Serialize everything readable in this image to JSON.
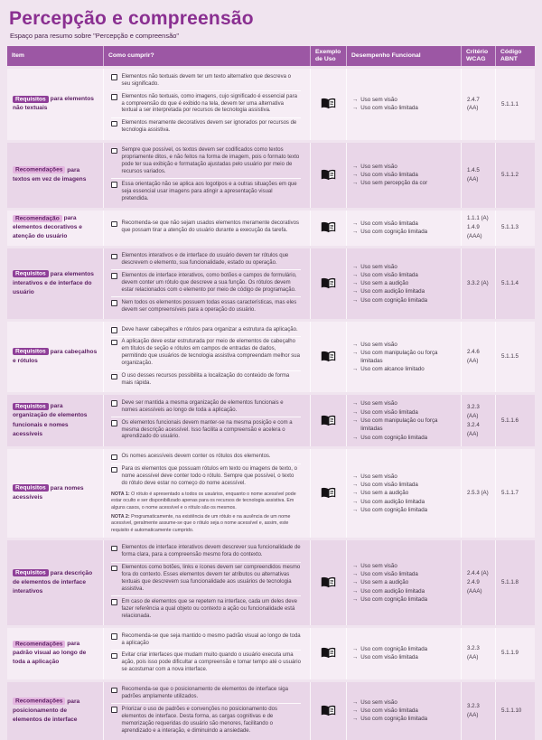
{
  "header": {
    "title": "Percepção e compreensão",
    "subtitle": "Espaço para resumo sobre \"Percepção e compreensão\""
  },
  "icons": {
    "arrow": "→",
    "exemplo": "book-icon",
    "checkbox": "empty-checkbox"
  },
  "colors": {
    "header_bg": "#9c57a4",
    "title_text": "#8a2f91",
    "row_light": "#f6edf5",
    "row_dark": "#e9d6e8",
    "badge_solid": "#8f3f98",
    "badge_light": "#e3b4df",
    "item_text": "#5c1f63"
  },
  "table": {
    "columns": [
      "Item",
      "Como cumprir?",
      "Exemplo de Uso",
      "Desempenho Funcional",
      "Critério WCAG",
      "Código ABNT"
    ],
    "rows": [
      {
        "badge": "Requisitos",
        "badge_style": "solid",
        "item_label": "para elementos não textuais",
        "como_cumprir": [
          "Elementos não textuais devem ter um texto alternativo que descreva o seu significado.",
          "Elementos não textuais, como imagens, cujo significado é essencial para a compreensão do que é exibido na tela, devem ter uma alternativa textual a ser interpretada por recursos de tecnologia assistiva.",
          "Elementos meramente decorativos devem ser ignorados por recursos de tecnologia assistiva."
        ],
        "notas": [],
        "desempenho": [
          "Uso sem visão",
          "Uso com visão limitada"
        ],
        "wcag": [
          "2.4.7 (AA)"
        ],
        "codigo": "5.1.1.1"
      },
      {
        "badge": "Recomendações",
        "badge_style": "light",
        "item_label": "para textos em vez de imagens",
        "como_cumprir": [
          "Sempre que possível, os textos devem ser codificados como textos propriamente ditos, e não feitos na forma de imagem, pois o formato texto pode ter sua exibição e formatação ajustadas pelo usuário por meio de recursos variados.",
          "Essa orientação não se aplica aos logotipos e a outras situações em que seja essencial usar imagens para atingir a apresentação visual pretendida."
        ],
        "notas": [],
        "desempenho": [
          "Uso sem visão",
          "Uso com visão limitada",
          "Uso sem percepção da cor"
        ],
        "wcag": [
          "1.4.5 (AA)"
        ],
        "codigo": "5.1.1.2"
      },
      {
        "badge": "Recomendação",
        "badge_style": "light",
        "item_label": "para elementos decorativos e atenção do usuário",
        "como_cumprir": [
          "Recomenda-se que não sejam usados elementos meramente decorativos que possam tirar a atenção do usuário durante a execução da tarefa."
        ],
        "notas": [],
        "desempenho": [
          "Uso com visão limitada",
          "Uso com cognição limitada"
        ],
        "wcag": [
          "1.1.1 (A)",
          "1.4.9 (AAA)"
        ],
        "codigo": "5.1.1.3"
      },
      {
        "badge": "Requisitos",
        "badge_style": "solid",
        "item_label": "para elementos interativos e de interface do usuário",
        "como_cumprir": [
          "Elementos interativos e de interface do usuário devem ter rótulos que descrevem o elemento, sua funcionalidade, estado ou operação.",
          "Elementos de interface interativos, como botões e campos de formulário, devem conter um rótulo que descreve a sua função. Os rótulos devem estar relacionados com o elemento por meio de código de programação.",
          "Nem todos os elementos possuem todas essas características, mas eles devem ser compreensíveis para a operação do usuário."
        ],
        "notas": [],
        "desempenho": [
          "Uso sem visão",
          "Uso com visão limitada",
          "Uso sem a audição",
          "Uso com audição limitada",
          "Uso com cognição limitada"
        ],
        "wcag": [
          "3.3.2 (A)"
        ],
        "codigo": "5.1.1.4"
      },
      {
        "badge": "Requisitos",
        "badge_style": "solid",
        "item_label": "para cabeçalhos e rótulos",
        "como_cumprir": [
          "Deve haver cabeçalhos e rótulos para organizar a estrutura da aplicação.",
          "A aplicação deve estar estruturada por meio de elementos de cabeçalho em títulos de seção e rótulos em campos de entradas de dados, permitindo que usuários de tecnologia assistiva compreendam melhor sua organização.",
          "O uso desses recursos possibilita a localização do conteúdo de forma mais rápida."
        ],
        "notas": [],
        "desempenho": [
          "Uso sem visão",
          "Uso com manipulação ou força limitadas",
          "Uso com alcance limitado"
        ],
        "wcag": [
          "2.4.6 (AA)"
        ],
        "codigo": "5.1.1.5"
      },
      {
        "badge": "Requisitos",
        "badge_style": "solid",
        "item_label": "para organização de elementos funcionais e nomes acessíveis",
        "como_cumprir": [
          "Deve ser mantida a mesma organização de elementos funcionais e nomes acessíveis ao longo de toda a aplicação.",
          "Os elementos funcionais devem manter-se na mesma posição e com a mesma descrição acessível. Isso facilita a compreensão e acelera o aprendizado do usuário."
        ],
        "notas": [],
        "desempenho": [
          "Uso sem visão",
          "Uso com visão limitada",
          "Uso com manipulação ou força limitadas",
          "Uso com cognição limitada"
        ],
        "wcag": [
          "3.2.3 (AA)",
          "3.2.4 (AA)"
        ],
        "codigo": "5.1.1.6"
      },
      {
        "badge": "Requisitos",
        "badge_style": "solid",
        "item_label": "para nomes acessíveis",
        "como_cumprir": [
          "Os nomes acessíveis devem conter os rótulos dos elementos.",
          "Para os elementos que possuam rótulos em texto ou imagens de texto, o nome acessível deve conter todo o rótulo. Sempre que possível, o texto do rótulo deve estar no começo do nome acessível."
        ],
        "notas": [
          {
            "label": "NOTA 1:",
            "text": "O rótulo é apresentado a todos os usuários, enquanto o nome acessível pode estar oculto e ser disponibilizado apenas para os recursos de tecnologia assistiva. Em alguns casos, o nome acessível e o rótulo são os mesmos."
          },
          {
            "label": "NOTA 2:",
            "text": "Programaticamente, na existência de um rótulo e na ausência de um nome acessível, geralmente assume-se que o rótulo seja o nome acessível e, assim, este requisito é automaticamente cumprido."
          }
        ],
        "desempenho": [
          "Uso sem visão",
          "Uso com visão limitada",
          "Uso sem a audição",
          "Uso com audição limitada",
          "Uso com cognição limitada"
        ],
        "wcag": [
          "2.5.3 (A)"
        ],
        "codigo": "5.1.1.7"
      },
      {
        "badge": "Requisitos",
        "badge_style": "solid",
        "item_label": "para descrição de elementos de interface interativos",
        "como_cumprir": [
          "Elementos de interface interativos devem descrever sua funcionalidade de forma clara, para a compreensão mesmo fora do contexto.",
          "Elementos como botões, links e ícones devem ser compreendidos mesmo fora do contexto. Esses elementos devem ter atributos ou alternativas textuais que descrevem sua funcionalidade aos usuários de tecnologia assistiva.",
          "Em caso de elementos que se repetem na interface, cada um deles deve fazer referência a qual objeto ou contexto a ação ou funcionalidade está relacionada."
        ],
        "notas": [],
        "desempenho": [
          "Uso sem visão",
          "Uso com visão limitada",
          "Uso sem a audição",
          "Uso com audição limitada",
          "Uso com cognição limitada"
        ],
        "wcag": [
          "2.4.4 (A)",
          "2.4.9 (AAA)"
        ],
        "codigo": "5.1.1.8"
      },
      {
        "badge": "Recomendações",
        "badge_style": "light",
        "item_label": "para padrão visual ao longo de toda a aplicação",
        "como_cumprir": [
          "Recomenda-se que seja mantido o mesmo padrão visual ao longo de toda a aplicação",
          "Evitar criar interfaces que mudam muito quando o usuário executa uma ação, pois isso pode dificultar a compreensão e tomar tempo até o usuário se acostumar com a nova interface."
        ],
        "notas": [],
        "desempenho": [
          "Uso com cognição limitada",
          "Uso com visão limitada"
        ],
        "wcag": [
          "3.2.3 (AA)"
        ],
        "codigo": "5.1.1.9"
      },
      {
        "badge": "Recomendações",
        "badge_style": "light",
        "item_label": "para posicionamento de elementos de interface",
        "como_cumprir": [
          "Recomenda-se que o posicionamento de elementos de interface siga padrões amplamente utilizados.",
          "Priorizar o uso de padrões e convenções no posicionamento dos elementos de interface. Desta forma, as cargas cognitivas e de memorização requeridas do usuário são menores, facilitando o aprendizado e a interação, e diminuindo a ansiedade."
        ],
        "notas": [],
        "desempenho": [
          "Uso sem visão",
          "Uso com visão limitada",
          "Uso com cognição limitada"
        ],
        "wcag": [
          "3.2.3 (AA)"
        ],
        "codigo": "5.1.1.10"
      }
    ]
  }
}
